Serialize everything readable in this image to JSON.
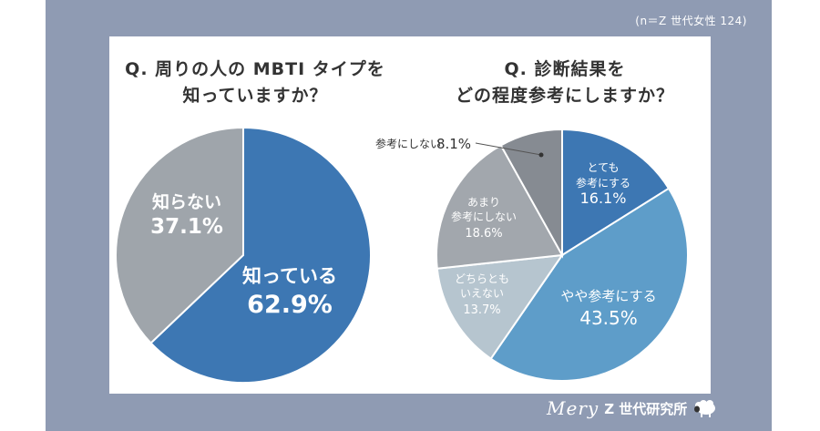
{
  "sample_note": "(n＝Z 世代女性 124)",
  "chart_data": [
    {
      "type": "pie",
      "title_lines": [
        "Q. 周りの人の MBTI タイプを",
        "知っていますか？"
      ],
      "slices": [
        {
          "label": "知っている",
          "value": 62.9,
          "value_text": "62.9%",
          "color": "#3d77b3"
        },
        {
          "label": "知らない",
          "value": 37.1,
          "value_text": "37.1%",
          "color": "#9fa5ab"
        }
      ]
    },
    {
      "type": "pie",
      "title_lines": [
        "Q. 診断結果を",
        "どの程度参考にしますか？"
      ],
      "slices": [
        {
          "label": "とても 参考にする",
          "label_lines": [
            "とても",
            "参考にする"
          ],
          "value": 16.1,
          "value_text": "16.1%",
          "color": "#3d77b3"
        },
        {
          "label": "やや参考にする",
          "label_lines": [
            "やや参考にする"
          ],
          "value": 43.5,
          "value_text": "43.5%",
          "color": "#5e9dc9"
        },
        {
          "label": "どちらとも いえない",
          "label_lines": [
            "どちらとも",
            "いえない"
          ],
          "value": 13.7,
          "value_text": "13.7%",
          "color": "#b6c5cf"
        },
        {
          "label": "あまり 参考にしない",
          "label_lines": [
            "あまり",
            "参考にしない"
          ],
          "value": 18.6,
          "value_text": "18.6%",
          "color": "#a2a7ad"
        },
        {
          "label": "参考にしない",
          "label_lines": [
            "参考にしない"
          ],
          "value": 8.1,
          "value_text": "8.1%",
          "color": "#868b92",
          "callout": true
        }
      ]
    }
  ],
  "brand": {
    "script": "Mery",
    "name": "Z 世代研究所",
    "icon": "sheep-icon"
  }
}
